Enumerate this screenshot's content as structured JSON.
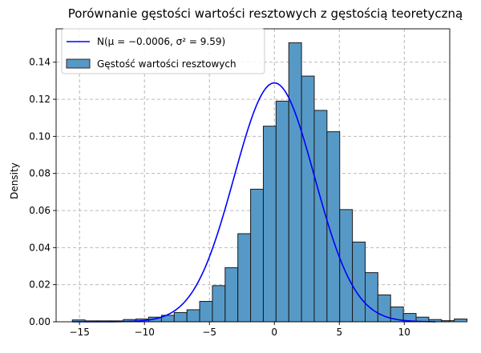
{
  "chart_data": {
    "type": "bar",
    "title": "Porównanie gęstości wartości resztowych z gęstością teoretyczną",
    "xlabel": "",
    "ylabel": "Density",
    "xlim": [
      -16.8,
      13.5
    ],
    "ylim": [
      0,
      0.158
    ],
    "xticks": [
      -15,
      -10,
      -5,
      0,
      5,
      10
    ],
    "xtick_labels": [
      "−15",
      "−10",
      "−5",
      "0",
      "5",
      "10"
    ],
    "yticks": [
      0,
      0.02,
      0.04,
      0.06,
      0.08,
      0.1,
      0.12,
      0.14
    ],
    "ytick_labels": [
      "0.00",
      "0.02",
      "0.04",
      "0.06",
      "0.08",
      "0.10",
      "0.12",
      "0.14"
    ],
    "grid": true,
    "legend_position": "top-left",
    "series": [
      {
        "name": "Gęstość wartości resztowych",
        "kind": "histogram",
        "color": "#5799c6",
        "edge_color": "#1a1a1a",
        "bin_start": -15.55,
        "bin_width": 0.98,
        "values": [
          0.001,
          0.0005,
          0.0005,
          0.0005,
          0.0012,
          0.0015,
          0.0025,
          0.0035,
          0.005,
          0.0065,
          0.011,
          0.0195,
          0.0292,
          0.0475,
          0.0715,
          0.1055,
          0.119,
          0.1505,
          0.1325,
          0.114,
          0.1025,
          0.0605,
          0.043,
          0.0265,
          0.0145,
          0.008,
          0.0045,
          0.0025,
          0.0012,
          0.0006,
          0.0015
        ]
      },
      {
        "name": "N(μ = −0.0006, σ² = 9.59)",
        "kind": "normal_pdf",
        "color": "#0000ff",
        "mu": -0.0006,
        "sigma2": 9.59,
        "x_range": [
          -15.55,
          12.4
        ]
      }
    ]
  }
}
